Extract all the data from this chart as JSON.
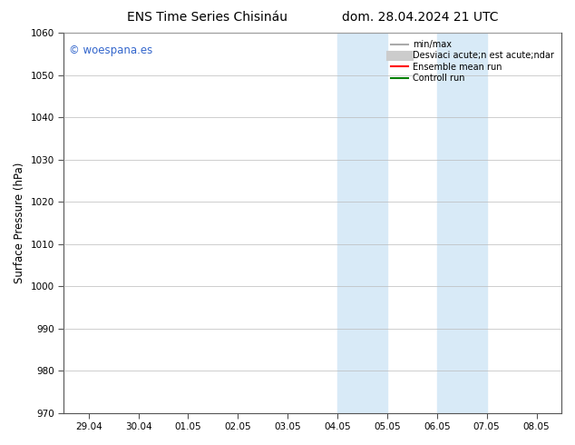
{
  "title_left": "ENS Time Series Chisináu",
  "title_right": "dom. 28.04.2024 21 UTC",
  "ylabel": "Surface Pressure (hPa)",
  "ylim": [
    970,
    1060
  ],
  "yticks": [
    970,
    980,
    990,
    1000,
    1010,
    1020,
    1030,
    1040,
    1050,
    1060
  ],
  "xtick_labels": [
    "29.04",
    "30.04",
    "01.05",
    "02.05",
    "03.05",
    "04.05",
    "05.05",
    "06.05",
    "07.05",
    "08.05"
  ],
  "xtick_positions": [
    0,
    1,
    2,
    3,
    4,
    5,
    6,
    7,
    8,
    9
  ],
  "xmin": -0.5,
  "xmax": 9.5,
  "shaded_bands": [
    {
      "xmin": 5.0,
      "xmax": 6.0,
      "color": "#d8eaf7"
    },
    {
      "xmin": 7.0,
      "xmax": 8.0,
      "color": "#d8eaf7"
    }
  ],
  "watermark_text": "© woespana.es",
  "watermark_color": "#3366cc",
  "legend_labels": [
    "min/max",
    "Desviaci acute;n est acute;ndar",
    "Ensemble mean run",
    "Controll run"
  ],
  "legend_colors": [
    "#aaaaaa",
    "#cccccc",
    "red",
    "green"
  ],
  "legend_lws": [
    1.5,
    8,
    1.5,
    1.5
  ],
  "background_color": "#ffffff",
  "grid_color": "#bbbbbb",
  "title_fontsize": 10,
  "tick_fontsize": 7.5,
  "ylabel_fontsize": 8.5,
  "legend_fontsize": 7
}
